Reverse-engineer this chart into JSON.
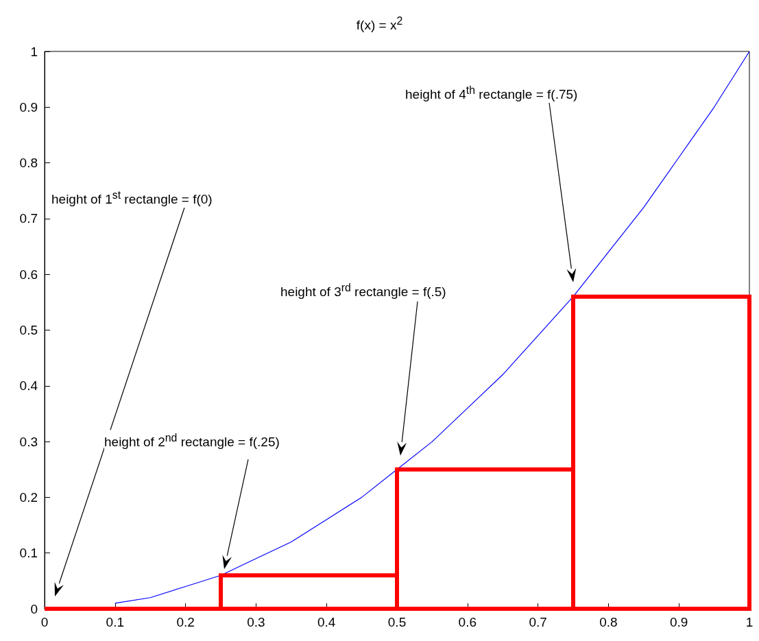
{
  "chart_data": {
    "type": "histogram",
    "title": "f(x) = x$^{2}$",
    "series": [
      {
        "type": "line",
        "color": "#0000ff",
        "x": [
          0.1,
          0.15,
          0.2,
          0.25,
          0.3,
          0.35,
          0.4,
          0.45,
          0.5,
          0.55,
          0.6,
          0.65,
          0.7,
          0.75,
          0.8,
          0.85,
          0.9,
          0.95,
          1
        ],
        "values": [
          0.01,
          0.02,
          0.04,
          0.06,
          0.09,
          0.12,
          0.16,
          0.2,
          0.25,
          0.3,
          0.36,
          0.42,
          0.49,
          0.56,
          0.64,
          0.72,
          0.81,
          0.9,
          1
        ]
      },
      {
        "color": "#ff0000",
        "bins": [
          0,
          0.25,
          0.5,
          0.75,
          1
        ],
        "values": [
          0,
          0.06,
          0.25,
          0.56
        ]
      }
    ],
    "xlim": [
      0,
      1
    ],
    "ylim": [
      0,
      1
    ],
    "xticks": [
      0,
      0.1,
      0.2,
      0.3,
      0.4,
      0.5,
      0.6,
      0.7,
      0.8,
      0.9,
      1
    ],
    "yticks": [
      0,
      0.1,
      0.2,
      0.3,
      0.4,
      0.5,
      0.6,
      0.7,
      0.8,
      0.9,
      1
    ],
    "grid": false,
    "marker": "none",
    "annotations": [
      "height of 1$^{st}$ rectangle = f(0)",
      "height of 2$^{nd}$ rectangle = f(.25)",
      "height of 3$^{rd}$ rectangle = f(.5)",
      "height of 4$^{th}$ rectangle = f(.75)"
    ]
  }
}
